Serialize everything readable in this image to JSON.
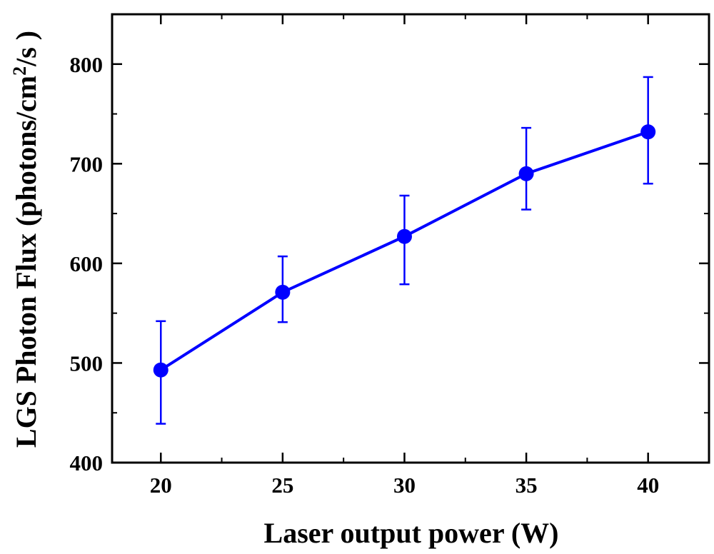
{
  "chart_data": {
    "type": "line",
    "title": "",
    "xlabel": "Laser output power (W)",
    "ylabel_main": "LGS Photon Flux (photons/cm",
    "ylabel_sup": "2",
    "ylabel_tail": "/s )",
    "xlim": [
      18,
      42.5
    ],
    "ylim": [
      400,
      850
    ],
    "x_ticks": [
      20,
      25,
      30,
      35,
      40
    ],
    "y_ticks": [
      400,
      500,
      600,
      700,
      800
    ],
    "grid": false,
    "series": [
      {
        "x": [
          20,
          25,
          30,
          35,
          40
        ],
        "y": [
          493,
          571,
          627,
          690,
          732
        ],
        "error_low": [
          439,
          541,
          579,
          654,
          680
        ],
        "error_high": [
          542,
          607,
          668,
          736,
          787
        ],
        "color": "#0000ff",
        "marker": "circle"
      }
    ]
  }
}
